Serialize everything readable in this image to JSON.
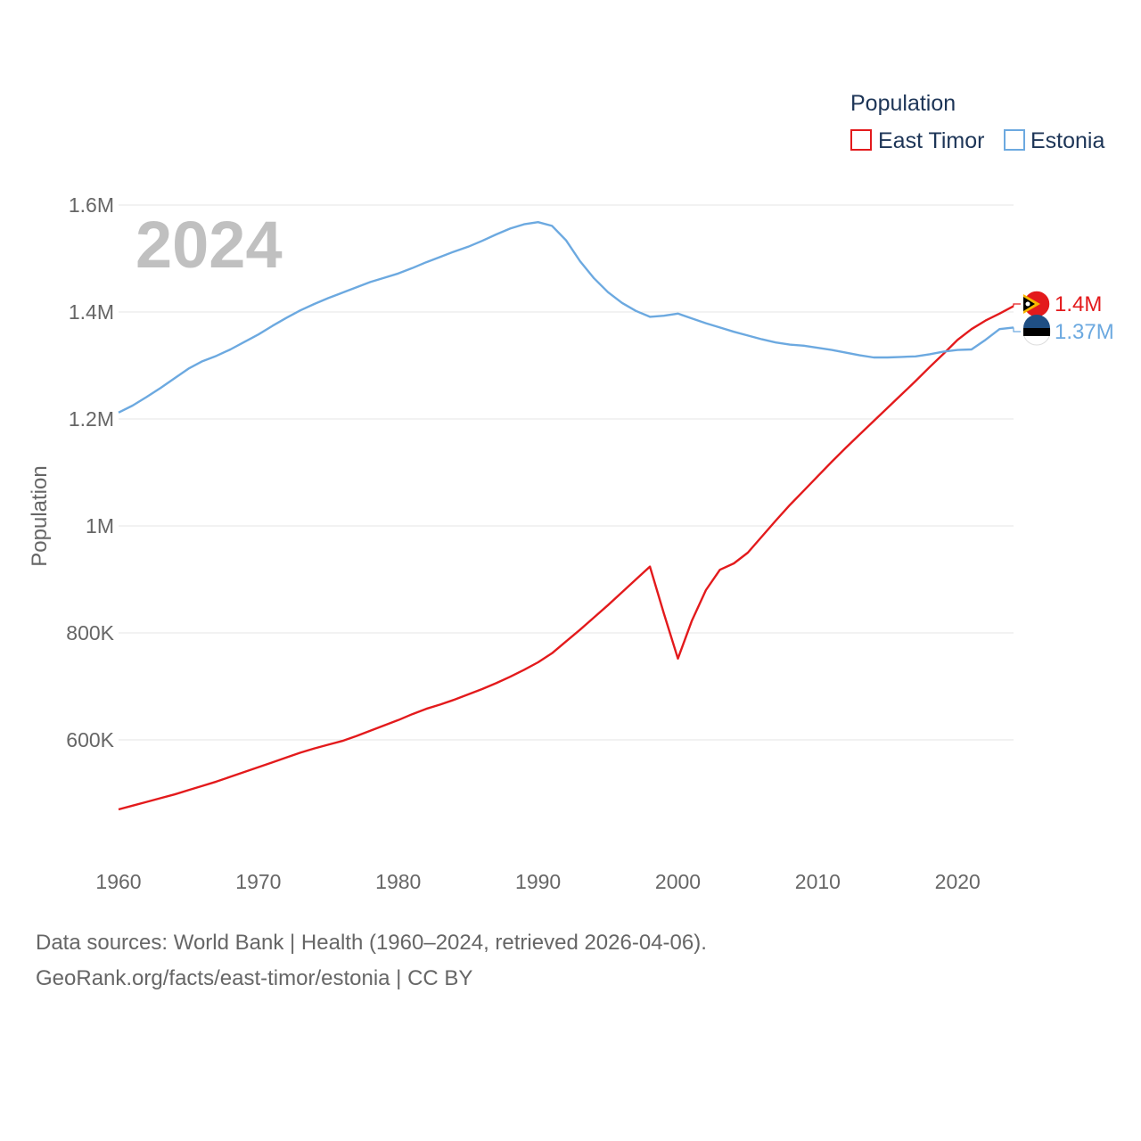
{
  "chart_data": {
    "type": "line",
    "ylabel": "Population",
    "legend_title": "Population",
    "legend_position": "top-right",
    "current_year_label": "2024",
    "xlim": [
      1960,
      2024
    ],
    "ylim": [
      445000,
      1600000
    ],
    "x_ticks": [
      {
        "value": 1960,
        "label": "1960"
      },
      {
        "value": 1970,
        "label": "1970"
      },
      {
        "value": 1980,
        "label": "1980"
      },
      {
        "value": 1990,
        "label": "1990"
      },
      {
        "value": 2000,
        "label": "2000"
      },
      {
        "value": 2010,
        "label": "2010"
      },
      {
        "value": 2020,
        "label": "2020"
      }
    ],
    "y_ticks": [
      {
        "value": 600000,
        "label": "600K"
      },
      {
        "value": 800000,
        "label": "800K"
      },
      {
        "value": 1000000,
        "label": "1M"
      },
      {
        "value": 1200000,
        "label": "1.2M"
      },
      {
        "value": 1400000,
        "label": "1.4M"
      },
      {
        "value": 1600000,
        "label": "1.6M"
      }
    ],
    "x": [
      1960,
      1961,
      1962,
      1963,
      1964,
      1965,
      1966,
      1967,
      1968,
      1969,
      1970,
      1971,
      1972,
      1973,
      1974,
      1975,
      1976,
      1977,
      1978,
      1979,
      1980,
      1981,
      1982,
      1983,
      1984,
      1985,
      1986,
      1987,
      1988,
      1989,
      1990,
      1991,
      1992,
      1993,
      1994,
      1995,
      1996,
      1997,
      1998,
      1999,
      2000,
      2001,
      2002,
      2003,
      2004,
      2005,
      2006,
      2007,
      2008,
      2009,
      2010,
      2011,
      2012,
      2013,
      2014,
      2015,
      2016,
      2017,
      2018,
      2019,
      2020,
      2021,
      2022,
      2023,
      2024
    ],
    "series": [
      {
        "name": "East Timor",
        "color": "#e31a1c",
        "end_label": "1.4M",
        "values": [
          470000,
          477000,
          484000,
          491000,
          498000,
          506000,
          514000,
          522000,
          531000,
          540000,
          549000,
          558000,
          567000,
          576000,
          584000,
          591000,
          598000,
          607000,
          617000,
          627000,
          637000,
          648000,
          658000,
          666000,
          675000,
          685000,
          695000,
          706000,
          718000,
          731000,
          745000,
          762000,
          784000,
          806000,
          829000,
          852000,
          876000,
          900000,
          924000,
          836000,
          752000,
          823000,
          880000,
          918000,
          930000,
          950000,
          980000,
          1010000,
          1039000,
          1066000,
          1093000,
          1120000,
          1146000,
          1171000,
          1196000,
          1221000,
          1246000,
          1271000,
          1297000,
          1322000,
          1348000,
          1368000,
          1384000,
          1397000,
          1411000
        ]
      },
      {
        "name": "Estonia",
        "color": "#6ca9e0",
        "end_label": "1.37M",
        "values": [
          1212000,
          1225000,
          1241000,
          1258000,
          1276000,
          1294000,
          1308000,
          1318000,
          1330000,
          1344000,
          1358000,
          1374000,
          1389000,
          1403000,
          1415000,
          1426000,
          1436000,
          1446000,
          1456000,
          1464000,
          1472000,
          1482000,
          1493000,
          1503000,
          1513000,
          1522000,
          1533000,
          1545000,
          1556000,
          1564000,
          1568000,
          1561000,
          1534000,
          1495000,
          1463000,
          1437000,
          1417000,
          1402000,
          1391000,
          1393000,
          1397000,
          1388000,
          1379000,
          1371000,
          1363000,
          1356000,
          1349000,
          1343000,
          1339000,
          1337000,
          1333000,
          1329000,
          1324000,
          1319000,
          1315000,
          1315000,
          1316000,
          1317000,
          1321000,
          1326000,
          1329000,
          1330000,
          1348000,
          1368000,
          1371000
        ]
      }
    ]
  },
  "footer": {
    "line1": "Data sources: World Bank | Health (1960–2024, retrieved 2026-04-06).",
    "line2": "GeoRank.org/facts/east-timor/estonia | CC BY"
  }
}
